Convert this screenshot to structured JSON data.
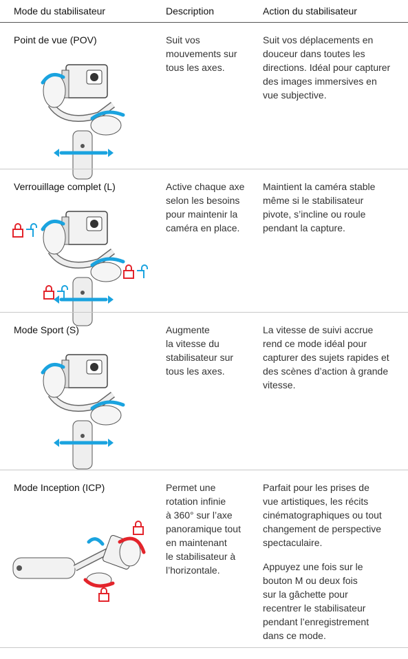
{
  "header": [
    "Mode du stabilisateur",
    "Description",
    "Action du stabilisateur"
  ],
  "rows": [
    {
      "mode": "Point de vue (POV)",
      "description": [
        "Suit vos",
        "mouvements sur",
        "tous les axes."
      ],
      "action": [
        [
          "Suit vos déplacements en",
          "douceur dans toutes les",
          "directions. Idéal pour capturer",
          "des images immersives en",
          "vue subjective."
        ]
      ]
    },
    {
      "mode": "Verrouillage complet (L)",
      "description": [
        "Active chaque axe",
        "selon les besoins",
        "pour maintenir la",
        "caméra en place."
      ],
      "action": [
        [
          "Maintient la caméra stable",
          "même si le stabilisateur",
          "pivote, s’incline ou roule",
          "pendant la capture."
        ]
      ]
    },
    {
      "mode": "Mode Sport (S)",
      "description": [
        "Augmente",
        "la vitesse du",
        "stabilisateur sur",
        "tous les axes."
      ],
      "action": [
        [
          "La vitesse de suivi accrue",
          "rend ce mode idéal pour",
          "capturer des sujets rapides et",
          "des scènes d’action à grande",
          "vitesse."
        ]
      ]
    },
    {
      "mode": "Mode Inception (ICP)",
      "description": [
        "Permet une",
        "rotation infinie",
        "à 360° sur l’axe",
        "panoramique tout",
        "en maintenant",
        "le stabilisateur à",
        "l’horizontale."
      ],
      "action": [
        [
          "Parfait pour les prises de",
          "vue artistiques, les récits",
          "cinématographiques ou tout",
          "changement de perspective",
          "spectaculaire."
        ],
        [
          "Appuyez une fois sur le",
          "bouton M ou deux fois",
          "sur la gâchette pour",
          "recentrer le stabilisateur",
          "pendant l’enregistrement",
          "dans ce mode."
        ]
      ]
    }
  ]
}
